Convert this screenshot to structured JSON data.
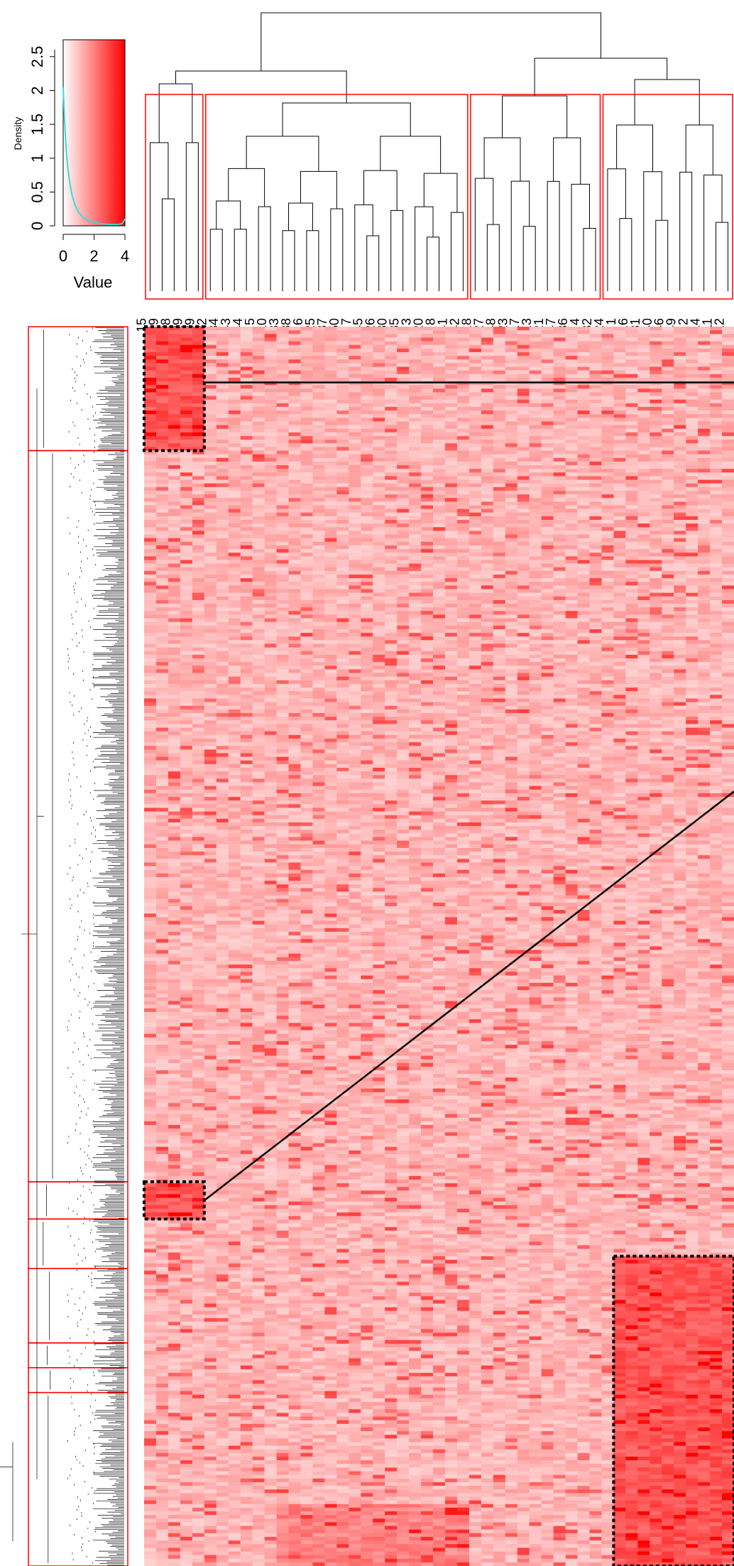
{
  "chart_data": [
    {
      "type": "line",
      "title": "",
      "ylabel": "Density",
      "xlabel": "Value",
      "xlim": [
        0,
        4
      ],
      "ylim": [
        0,
        2.75
      ],
      "x_ticks": [
        "0",
        "2",
        "4"
      ],
      "x_tick_values": [
        0,
        2,
        4
      ],
      "y_ticks": [
        "0",
        "0.5",
        "1",
        "1.5",
        "2",
        "2.5"
      ],
      "y_tick_values": [
        0,
        0.5,
        1,
        1.5,
        2,
        2.5
      ],
      "color_key": {
        "low": "#ffffff",
        "high": "#ff0000"
      },
      "series": [
        {
          "color": "#33dddd",
          "x": [
            0,
            0.05,
            0.1,
            0.2,
            0.3,
            0.45,
            0.6,
            0.8,
            1.0,
            1.3,
            1.6,
            2.0,
            2.5,
            3.0,
            3.5,
            3.8,
            3.9,
            4.0
          ],
          "y": [
            2.05,
            1.75,
            1.5,
            1.12,
            0.86,
            0.6,
            0.43,
            0.29,
            0.2,
            0.12,
            0.08,
            0.05,
            0.03,
            0.02,
            0.02,
            0.03,
            0.06,
            0.1
          ]
        }
      ]
    },
    {
      "type": "heatmap",
      "title": "",
      "column_labels": [
        "15",
        "19",
        "28",
        "29",
        "39",
        "22",
        "34",
        "43",
        "44",
        "5",
        "10",
        "33",
        "38",
        "6",
        "25",
        "37",
        "50",
        "7",
        "45",
        "26",
        "30",
        "35",
        "3",
        "20",
        "8",
        "41",
        "42",
        "18",
        "27",
        "48",
        "23",
        "17",
        "13",
        "21",
        "47",
        "36",
        "4",
        "32",
        "24",
        "1",
        "16",
        "31",
        "40",
        "46",
        "49",
        "2",
        "14",
        "11",
        "12"
      ],
      "column_clusters": [
        {
          "columns": [
            "15",
            "19",
            "28",
            "29",
            "39"
          ],
          "highlight": "#ff0000"
        },
        {
          "columns": [
            "22",
            "34",
            "43",
            "44",
            "5",
            "10",
            "33",
            "38",
            "6",
            "25",
            "37",
            "50",
            "7",
            "45",
            "26",
            "30",
            "35",
            "3",
            "20",
            "8",
            "41",
            "42"
          ],
          "highlight": "#ff0000"
        },
        {
          "columns": [
            "18",
            "27",
            "48",
            "23",
            "17",
            "13",
            "21",
            "47",
            "36",
            "4",
            "32"
          ],
          "highlight": "#ff0000"
        },
        {
          "columns": [
            "24",
            "1",
            "16",
            "31",
            "40",
            "46",
            "49",
            "2",
            "14",
            "11",
            "12"
          ],
          "highlight": "#ff0000"
        }
      ],
      "row_clusters": [
        {
          "rows_fraction": [
            0.0,
            0.1
          ]
        },
        {
          "rows_fraction": [
            0.1,
            0.69
          ]
        },
        {
          "rows_fraction": [
            0.69,
            0.72
          ]
        },
        {
          "rows_fraction": [
            0.72,
            0.76
          ]
        },
        {
          "rows_fraction": [
            0.76,
            0.82
          ]
        },
        {
          "rows_fraction": [
            0.82,
            0.84
          ]
        },
        {
          "rows_fraction": [
            0.84,
            0.86
          ]
        },
        {
          "rows_fraction": [
            0.86,
            1.0
          ]
        }
      ],
      "highlighted_blocks": [
        {
          "columns": [
            "15",
            "19",
            "28",
            "29",
            "39"
          ],
          "rows_fraction": [
            0.0,
            0.1
          ]
        },
        {
          "columns": [
            "15",
            "19",
            "28",
            "29",
            "39"
          ],
          "rows_fraction": [
            0.69,
            0.72
          ]
        },
        {
          "columns": [
            "1",
            "16",
            "31",
            "40",
            "46",
            "49",
            "2",
            "14",
            "11",
            "12"
          ],
          "rows_fraction": [
            0.75,
            1.0
          ]
        }
      ],
      "value_range": [
        0,
        4
      ]
    }
  ]
}
